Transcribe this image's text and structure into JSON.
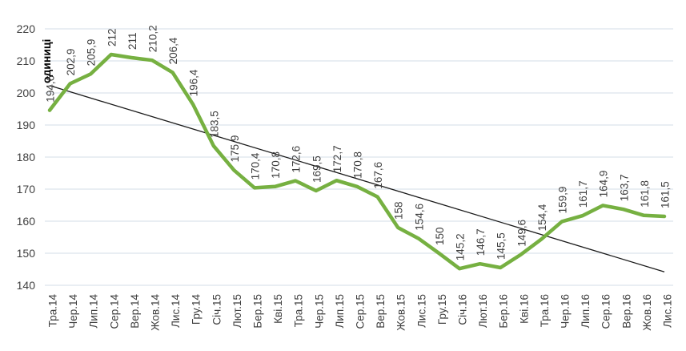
{
  "chart_data": {
    "type": "line",
    "title": "",
    "xlabel": "",
    "ylabel": "одиниці",
    "legend": "none",
    "grid": "horizontal",
    "ylim": [
      140,
      220
    ],
    "ytick_step": 10,
    "yticks": [
      140,
      150,
      160,
      170,
      180,
      190,
      200,
      210,
      220
    ],
    "categories": [
      "Тра.14",
      "Чер.14",
      "Лип.14",
      "Сер.14",
      "Вер.14",
      "Жов.14",
      "Лис.14",
      "Гру.14",
      "Січ.15",
      "Лют.15",
      "Бер.15",
      "Кві.15",
      "Тра.15",
      "Чер.15",
      "Лип.15",
      "Сер.15",
      "Вер.15",
      "Жов.15",
      "Лис.15",
      "Гру.15",
      "Січ.16",
      "Лют.16",
      "Бер.16",
      "Кві.16",
      "Тра.16",
      "Чер.16",
      "Лип.16",
      "Сер.16",
      "Вер.16",
      "Жов.16",
      "Лис.16"
    ],
    "values": [
      194.6,
      202.9,
      205.9,
      212,
      211,
      210.2,
      206.4,
      196.4,
      183.5,
      175.9,
      170.4,
      170.8,
      172.6,
      169.5,
      172.7,
      170.8,
      167.6,
      158,
      154.6,
      150,
      145.2,
      146.7,
      145.5,
      149.6,
      154.4,
      159.9,
      161.7,
      164.9,
      163.7,
      161.8,
      161.5
    ],
    "point_labels": [
      "194,6",
      "202,9",
      "205,9",
      "212",
      "211",
      "210,2",
      "206,4",
      "196,4",
      "183,5",
      "175,9",
      "170,4",
      "170,8",
      "172,6",
      "169,5",
      "172,7",
      "170,8",
      "167,6",
      "158",
      "154,6",
      "150",
      "145,2",
      "146,7",
      "145,5",
      "149,6",
      "154,4",
      "159,9",
      "161,7",
      "164,9",
      "163,7",
      "161,8",
      "161,5"
    ],
    "series_color": "#76B041",
    "trendline": {
      "start": 202.3,
      "end": 144.2,
      "color": "#1a1a1a"
    },
    "label_color": "#3f3f3f",
    "title_color": "#000000",
    "gridline_color": "#dce3ec"
  }
}
